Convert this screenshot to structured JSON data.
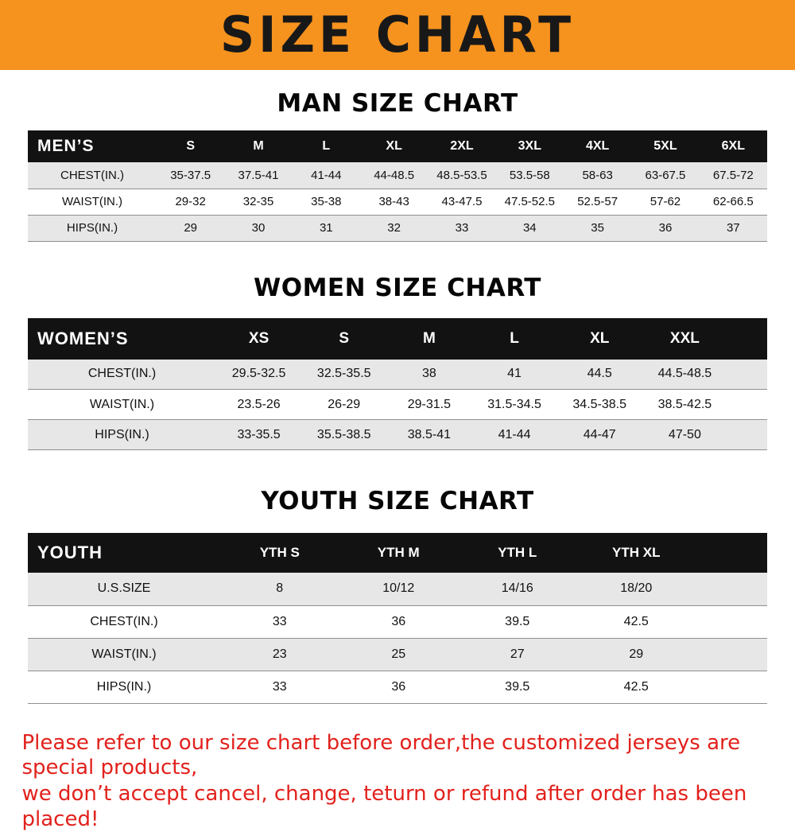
{
  "banner": {
    "title": "SIZE CHART"
  },
  "sections": {
    "men": {
      "heading": "MAN SIZE CHART",
      "table": {
        "corner": "MEN’S",
        "sizes": [
          "S",
          "M",
          "L",
          "XL",
          "2XL",
          "3XL",
          "4XL",
          "5XL",
          "6XL"
        ],
        "rows": [
          {
            "label": "CHEST(IN.)",
            "values": [
              "35-37.5",
              "37.5-41",
              "41-44",
              "44-48.5",
              "48.5-53.5",
              "53.5-58",
              "58-63",
              "63-67.5",
              "67.5-72"
            ]
          },
          {
            "label": "WAIST(IN.)",
            "values": [
              "29-32",
              "32-35",
              "35-38",
              "38-43",
              "43-47.5",
              "47.5-52.5",
              "52.5-57",
              "57-62",
              "62-66.5"
            ]
          },
          {
            "label": "HIPS(IN.)",
            "values": [
              "29",
              "30",
              "31",
              "32",
              "33",
              "34",
              "35",
              "36",
              "37"
            ]
          }
        ]
      }
    },
    "women": {
      "heading": "WOMEN SIZE CHART",
      "table": {
        "corner": "WOMEN’S",
        "sizes": [
          "XS",
          "S",
          "M",
          "L",
          "XL",
          "XXL"
        ],
        "rows": [
          {
            "label": "CHEST(IN.)",
            "values": [
              "29.5-32.5",
              "32.5-35.5",
              "38",
              "41",
              "44.5",
              "44.5-48.5"
            ]
          },
          {
            "label": "WAIST(IN.)",
            "values": [
              "23.5-26",
              "26-29",
              "29-31.5",
              "31.5-34.5",
              "34.5-38.5",
              "38.5-42.5"
            ]
          },
          {
            "label": "HIPS(IN.)",
            "values": [
              "33-35.5",
              "35.5-38.5",
              "38.5-41",
              "41-44",
              "44-47",
              "47-50"
            ]
          }
        ]
      }
    },
    "youth": {
      "heading": "YOUTH SIZE CHART",
      "table": {
        "corner": "YOUTH",
        "sizes": [
          "YTH S",
          "YTH M",
          "YTH L",
          "YTH XL"
        ],
        "rows": [
          {
            "label": "U.S.SIZE",
            "values": [
              "8",
              "10/12",
              "14/16",
              "18/20"
            ]
          },
          {
            "label": "CHEST(IN.)",
            "values": [
              "33",
              "36",
              "39.5",
              "42.5"
            ]
          },
          {
            "label": "WAIST(IN.)",
            "values": [
              "23",
              "25",
              "27",
              "29"
            ]
          },
          {
            "label": "HIPS(IN.)",
            "values": [
              "33",
              "36",
              "39.5",
              "42.5"
            ]
          }
        ]
      }
    }
  },
  "footer": {
    "line1": "Please refer to our size chart before order,the customized jerseys are special products,",
    "line2": "we don’t accept cancel, change, teturn or refund after order has been placed!"
  },
  "colors": {
    "banner_bg": "#f6921e",
    "header_bg": "#121212",
    "row_alt": "#e7e7e7",
    "footer_text": "#e2211c"
  }
}
